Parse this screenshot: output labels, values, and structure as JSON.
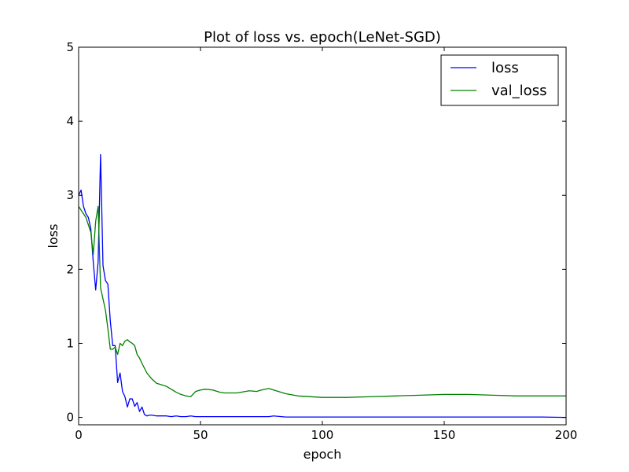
{
  "chart_data": {
    "type": "line",
    "title": "Plot of loss vs. epoch(LeNet-SGD)",
    "xlabel": "epoch",
    "ylabel": "loss",
    "xlim": [
      0,
      200
    ],
    "ylim": [
      -0.1,
      5
    ],
    "xticks": [
      0,
      50,
      100,
      150,
      200
    ],
    "yticks": [
      0,
      1,
      2,
      3,
      4,
      5
    ],
    "grid": false,
    "legend_position": "top-right",
    "series": [
      {
        "name": "loss",
        "color": "#0000ff",
        "x": [
          0,
          1,
          2,
          3,
          4,
          5,
          6,
          7,
          8,
          9,
          10,
          11,
          12,
          13,
          14,
          15,
          16,
          17,
          18,
          19,
          20,
          21,
          22,
          23,
          24,
          25,
          26,
          27,
          28,
          29,
          30,
          32,
          34,
          36,
          38,
          40,
          42,
          44,
          46,
          48,
          50,
          55,
          60,
          65,
          70,
          75,
          78,
          80,
          85,
          90,
          100,
          110,
          120,
          130,
          140,
          150,
          160,
          170,
          180,
          190,
          200
        ],
        "y": [
          3.0,
          3.07,
          2.85,
          2.75,
          2.7,
          2.55,
          2.1,
          1.72,
          2.1,
          3.55,
          2.05,
          1.85,
          1.8,
          1.3,
          0.97,
          0.97,
          0.47,
          0.6,
          0.35,
          0.28,
          0.14,
          0.25,
          0.25,
          0.15,
          0.2,
          0.08,
          0.14,
          0.04,
          0.02,
          0.03,
          0.03,
          0.02,
          0.02,
          0.02,
          0.01,
          0.02,
          0.01,
          0.01,
          0.02,
          0.01,
          0.01,
          0.01,
          0.01,
          0.01,
          0.01,
          0.01,
          0.01,
          0.02,
          0.005,
          0.005,
          0.005,
          0.005,
          0.005,
          0.005,
          0.005,
          0.005,
          0.005,
          0.005,
          0.005,
          0.005,
          0.0
        ]
      },
      {
        "name": "val_loss",
        "color": "#008000",
        "x": [
          0,
          1,
          2,
          3,
          4,
          5,
          6,
          7,
          8,
          9,
          10,
          11,
          12,
          13,
          14,
          15,
          16,
          17,
          18,
          19,
          20,
          21,
          22,
          23,
          24,
          25,
          26,
          28,
          30,
          32,
          34,
          36,
          38,
          40,
          42,
          44,
          46,
          48,
          50,
          52,
          55,
          58,
          60,
          65,
          70,
          73,
          75,
          78,
          80,
          85,
          90,
          100,
          110,
          120,
          130,
          140,
          150,
          160,
          170,
          180,
          190,
          200
        ],
        "y": [
          2.85,
          2.8,
          2.75,
          2.7,
          2.6,
          2.5,
          2.2,
          2.65,
          2.85,
          1.75,
          1.6,
          1.45,
          1.2,
          0.92,
          0.92,
          0.95,
          0.85,
          1.0,
          0.97,
          1.03,
          1.05,
          1.02,
          1.0,
          0.97,
          0.85,
          0.8,
          0.73,
          0.6,
          0.52,
          0.46,
          0.44,
          0.42,
          0.38,
          0.34,
          0.31,
          0.29,
          0.28,
          0.35,
          0.37,
          0.38,
          0.37,
          0.34,
          0.33,
          0.33,
          0.36,
          0.35,
          0.37,
          0.39,
          0.37,
          0.32,
          0.29,
          0.27,
          0.27,
          0.28,
          0.29,
          0.3,
          0.31,
          0.31,
          0.3,
          0.29,
          0.29,
          0.29
        ]
      }
    ]
  }
}
